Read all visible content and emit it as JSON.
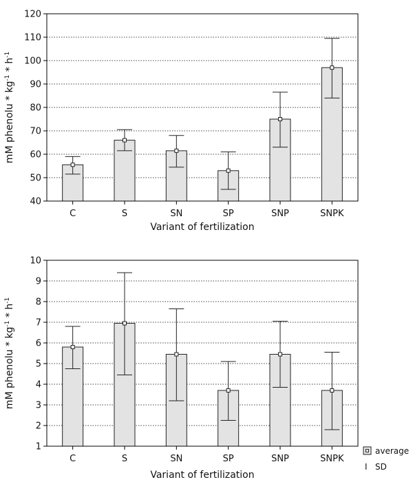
{
  "chart_data": [
    {
      "type": "bar",
      "categories": [
        "C",
        "S",
        "SN",
        "SP",
        "SNP",
        "SNPK"
      ],
      "values": [
        55.5,
        66.0,
        61.5,
        53.0,
        75.0,
        97.0
      ],
      "sd_high": [
        59.0,
        70.5,
        68.0,
        61.0,
        86.5,
        109.5
      ],
      "sd_low": [
        51.5,
        61.5,
        54.5,
        45.0,
        63.0,
        84.0
      ],
      "xlabel": "Variant of fertilization",
      "ylabel": "mM phenolu * kg",
      "ylabel_sup1": "-1",
      "ylabel_mid": " * h",
      "ylabel_sup2": "-1",
      "ylim": [
        40,
        120
      ],
      "yticks": [
        "40",
        "50",
        "60",
        "70",
        "80",
        "90",
        "100",
        "110",
        "120"
      ],
      "grid": true
    },
    {
      "type": "bar",
      "categories": [
        "C",
        "S",
        "SN",
        "SP",
        "SNP",
        "SNPK"
      ],
      "values": [
        5.8,
        6.95,
        5.45,
        3.7,
        5.45,
        3.7
      ],
      "sd_high": [
        6.8,
        9.4,
        7.65,
        5.1,
        7.05,
        5.55
      ],
      "sd_low": [
        4.75,
        4.45,
        3.2,
        2.25,
        3.85,
        1.8
      ],
      "xlabel": "Variant of fertilization",
      "ylabel": "mM phenolu * kg",
      "ylabel_sup1": "-1",
      "ylabel_mid": " * h",
      "ylabel_sup2": "-1",
      "ylim": [
        1,
        10
      ],
      "yticks": [
        "1",
        "2",
        "3",
        "4",
        "5",
        "6",
        "7",
        "8",
        "9",
        "10"
      ],
      "grid": true
    }
  ],
  "legend": {
    "average_label": "average",
    "sd_label": "SD",
    "sd_symbol": "I",
    "placement": "bottom-right"
  }
}
